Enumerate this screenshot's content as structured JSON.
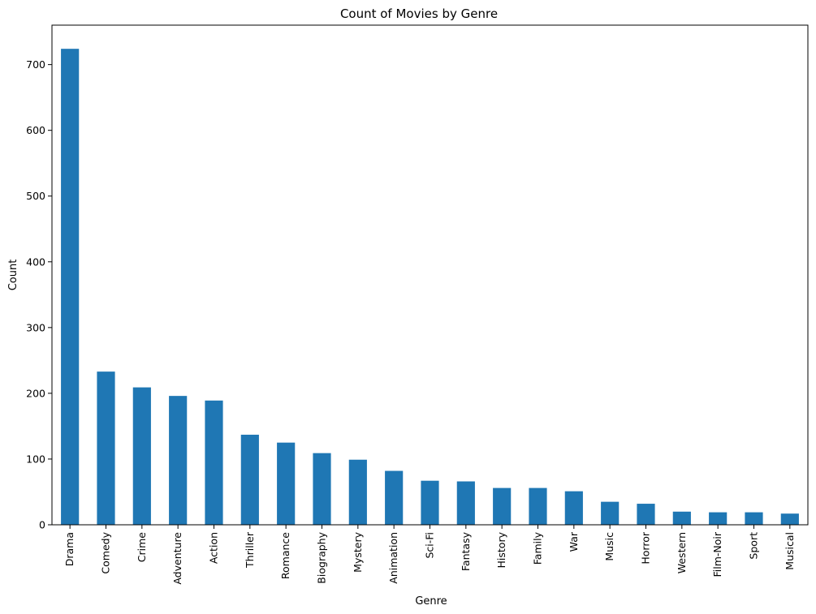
{
  "chart_data": {
    "type": "bar",
    "title": "Count of Movies by Genre",
    "xlabel": "Genre",
    "ylabel": "Count",
    "categories": [
      "Drama",
      "Comedy",
      "Crime",
      "Adventure",
      "Action",
      "Thriller",
      "Romance",
      "Biography",
      "Mystery",
      "Animation",
      "Sci-Fi",
      "Fantasy",
      "History",
      "Family",
      "War",
      "Music",
      "Horror",
      "Western",
      "Film-Noir",
      "Sport",
      "Musical"
    ],
    "values": [
      724,
      233,
      209,
      196,
      189,
      137,
      125,
      109,
      99,
      82,
      67,
      66,
      56,
      56,
      51,
      35,
      32,
      20,
      19,
      19,
      17
    ],
    "ylim": [
      0,
      760
    ],
    "yticks": [
      0,
      100,
      200,
      300,
      400,
      500,
      600,
      700
    ],
    "bar_color": "#1f77b4",
    "grid": false,
    "legend": "none"
  }
}
